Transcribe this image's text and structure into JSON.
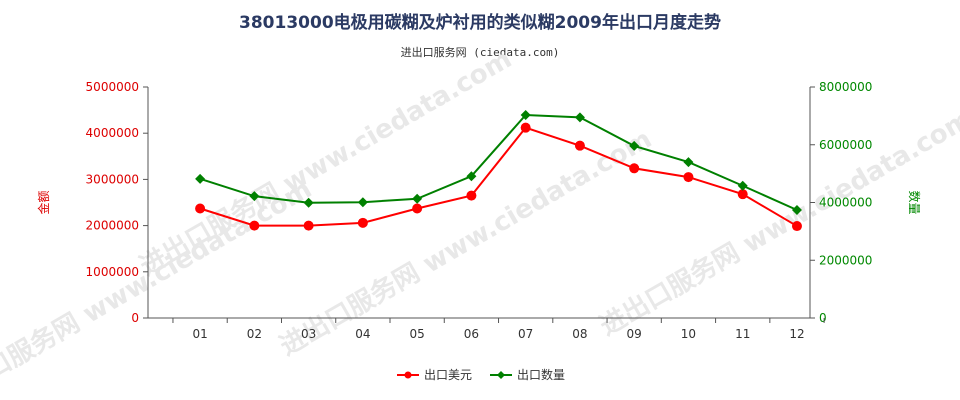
{
  "title": "38013000电极用碳糊及炉衬用的类似糊2009年出口月度走势",
  "subtitle": "进出口服务网 (ciedata.com)",
  "watermark": "进出口服务网 www.ciedata.com",
  "chart_data": {
    "type": "line",
    "categories": [
      "01",
      "02",
      "03",
      "04",
      "05",
      "06",
      "07",
      "08",
      "09",
      "10",
      "11",
      "12"
    ],
    "y_left": {
      "label": "金额",
      "ticks": [
        "0",
        "1000000",
        "2000000",
        "3000000",
        "4000000",
        "5000000"
      ],
      "ylim": [
        0,
        5000000
      ],
      "color": "#dd0000"
    },
    "y_right": {
      "label": "数量",
      "ticks": [
        "0",
        "2000000",
        "4000000",
        "6000000",
        "8000000"
      ],
      "ylim": [
        0,
        8000000
      ],
      "color": "#008800"
    },
    "series": [
      {
        "name": "出口美元",
        "axis": "left",
        "color": "#ff0000",
        "marker": "circle",
        "values": [
          2370000,
          2000000,
          2000000,
          2060000,
          2370000,
          2650000,
          4120000,
          3730000,
          3240000,
          3050000,
          2680000,
          1990000
        ]
      },
      {
        "name": "出口数量",
        "axis": "right",
        "color": "#008000",
        "marker": "diamond",
        "values": [
          4820000,
          4220000,
          3990000,
          4010000,
          4130000,
          4910000,
          7030000,
          6950000,
          5960000,
          5400000,
          4580000,
          3740000
        ]
      }
    ],
    "grid": false,
    "legend": "bottom-center"
  }
}
